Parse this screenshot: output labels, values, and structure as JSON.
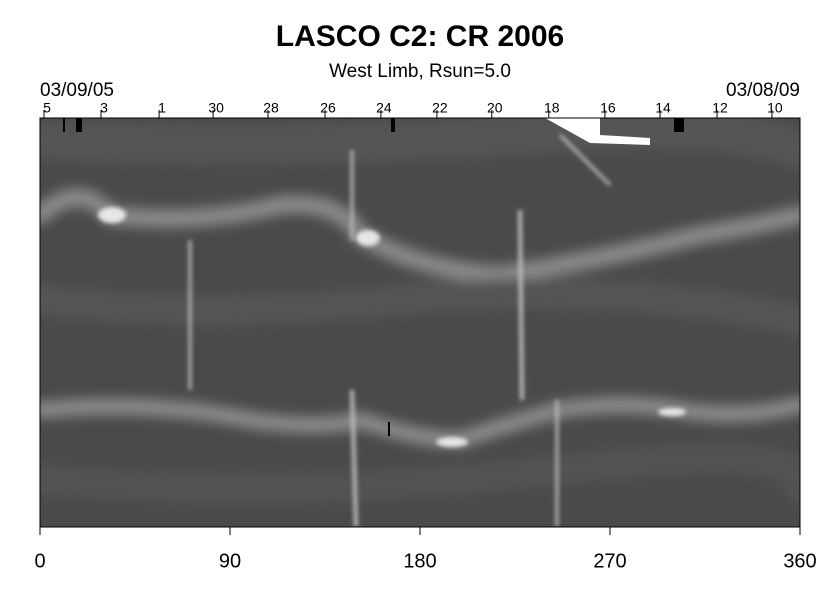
{
  "chart_data": {
    "type": "synoptic-map",
    "title": "LASCO C2: CR 2006",
    "subtitle": "West Limb, Rsun=5.0",
    "start_date": "03/09/05",
    "end_date": "03/08/09",
    "xlim": [
      0,
      360
    ],
    "xticks": [
      0,
      90,
      180,
      270,
      360
    ],
    "top_ticks": [
      {
        "value": 1.9,
        "label": "5"
      },
      {
        "value": 28.9,
        "label": "3"
      },
      {
        "value": 56.4,
        "label": "1"
      },
      {
        "value": 82,
        "label": "30"
      },
      {
        "value": 108,
        "label": "28"
      },
      {
        "value": 135,
        "label": "26"
      },
      {
        "value": 161.5,
        "label": "24"
      },
      {
        "value": 188,
        "label": "22"
      },
      {
        "value": 214,
        "label": "20"
      },
      {
        "value": 241,
        "label": "18"
      },
      {
        "value": 267.6,
        "label": "16"
      },
      {
        "value": 293.7,
        "label": "14"
      },
      {
        "value": 320.7,
        "label": "12"
      },
      {
        "value": 346.7,
        "label": "10"
      }
    ]
  }
}
